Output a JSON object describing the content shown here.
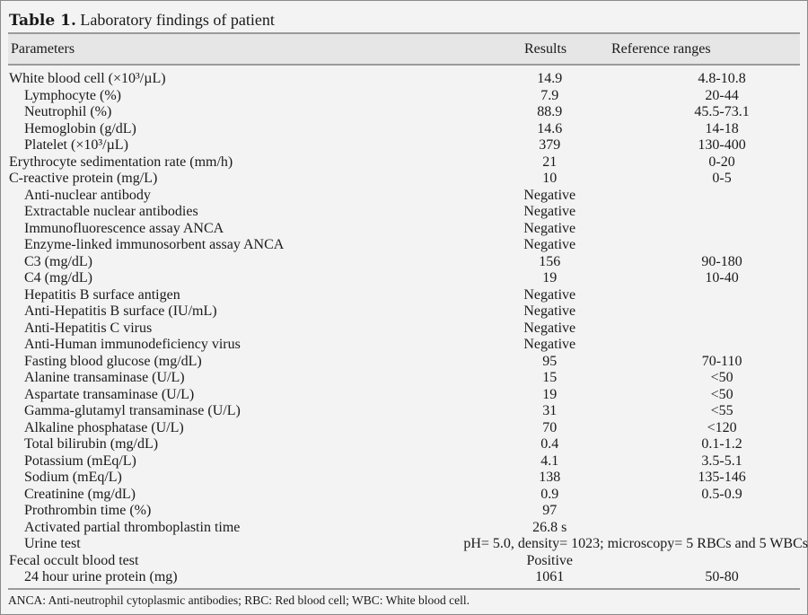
{
  "title": {
    "label": "Table 1.",
    "text": "Laboratory findings of patient"
  },
  "header": {
    "parameters": "Parameters",
    "results": "Results",
    "reference": "Reference ranges"
  },
  "rows": [
    {
      "parameter": "White blood cell (×10³/µL)",
      "indent": false,
      "result": "14.9",
      "reference": "4.8-10.8"
    },
    {
      "parameter": "Lymphocyte (%)",
      "indent": true,
      "result": "7.9",
      "reference": "20-44"
    },
    {
      "parameter": "Neutrophil (%)",
      "indent": true,
      "result": "88.9",
      "reference": "45.5-73.1"
    },
    {
      "parameter": "Hemoglobin (g/dL)",
      "indent": true,
      "result": "14.6",
      "reference": "14-18"
    },
    {
      "parameter": "Platelet (×10³/µL)",
      "indent": true,
      "result": "379",
      "reference": "130-400"
    },
    {
      "parameter": "Erythrocyte sedimentation rate (mm/h)",
      "indent": false,
      "result": "21",
      "reference": "0-20"
    },
    {
      "parameter": "C-reactive protein (mg/L)",
      "indent": false,
      "result": "10",
      "reference": "0-5"
    },
    {
      "parameter": "Anti-nuclear antibody",
      "indent": true,
      "result": "Negative",
      "reference": ""
    },
    {
      "parameter": "Extractable nuclear antibodies",
      "indent": true,
      "result": "Negative",
      "reference": ""
    },
    {
      "parameter": "Immunofluorescence assay ANCA",
      "indent": true,
      "result": "Negative",
      "reference": ""
    },
    {
      "parameter": "Enzyme-linked immunosorbent assay ANCA",
      "indent": true,
      "result": "Negative",
      "reference": ""
    },
    {
      "parameter": "C3 (mg/dL)",
      "indent": true,
      "result": "156",
      "reference": "90-180"
    },
    {
      "parameter": "C4 (mg/dL)",
      "indent": true,
      "result": "19",
      "reference": "10-40"
    },
    {
      "parameter": "Hepatitis B surface antigen",
      "indent": true,
      "result": "Negative",
      "reference": ""
    },
    {
      "parameter": "Anti-Hepatitis B surface (IU/mL)",
      "indent": true,
      "result": "Negative",
      "reference": ""
    },
    {
      "parameter": "Anti-Hepatitis C virus",
      "indent": true,
      "result": "Negative",
      "reference": ""
    },
    {
      "parameter": "Anti-Human immunodeficiency virus",
      "indent": true,
      "result": "Negative",
      "reference": ""
    },
    {
      "parameter": "Fasting blood glucose (mg/dL)",
      "indent": true,
      "result": "95",
      "reference": "70-110"
    },
    {
      "parameter": "Alanine transaminase (U/L)",
      "indent": true,
      "result": "15",
      "reference": "<50"
    },
    {
      "parameter": "Aspartate transaminase (U/L)",
      "indent": true,
      "result": "19",
      "reference": "<50"
    },
    {
      "parameter": "Gamma-glutamyl transaminase (U/L)",
      "indent": true,
      "result": "31",
      "reference": "<55"
    },
    {
      "parameter": "Alkaline phosphatase (U/L)",
      "indent": true,
      "result": "70",
      "reference": "<120"
    },
    {
      "parameter": "Total bilirubin (mg/dL)",
      "indent": true,
      "result": "0.4",
      "reference": "0.1-1.2"
    },
    {
      "parameter": "Potassium (mEq/L)",
      "indent": true,
      "result": "4.1",
      "reference": "3.5-5.1"
    },
    {
      "parameter": "Sodium (mEq/L)",
      "indent": true,
      "result": "138",
      "reference": "135-146"
    },
    {
      "parameter": "Creatinine (mg/dL)",
      "indent": true,
      "result": "0.9",
      "reference": "0.5-0.9"
    },
    {
      "parameter": "Prothrombin time (%)",
      "indent": true,
      "result": "97",
      "reference": ""
    },
    {
      "parameter": "Activated partial thromboplastin time",
      "indent": true,
      "result": "26.8 s",
      "reference": ""
    },
    {
      "parameter": "Urine test",
      "indent": true,
      "result": "pH= 5.0, density= 1023; microscopy= 5 RBCs and 5 WBCs",
      "reference": "",
      "span": true
    },
    {
      "parameter": "Fecal occult blood test",
      "indent": false,
      "result": "Positive",
      "reference": ""
    },
    {
      "parameter": "24 hour urine protein (mg)",
      "indent": true,
      "result": "1061",
      "reference": "50-80"
    }
  ],
  "footnote": "ANCA: Anti-neutrophil cytoplasmic antibodies; RBC: Red blood cell; WBC: White blood cell."
}
